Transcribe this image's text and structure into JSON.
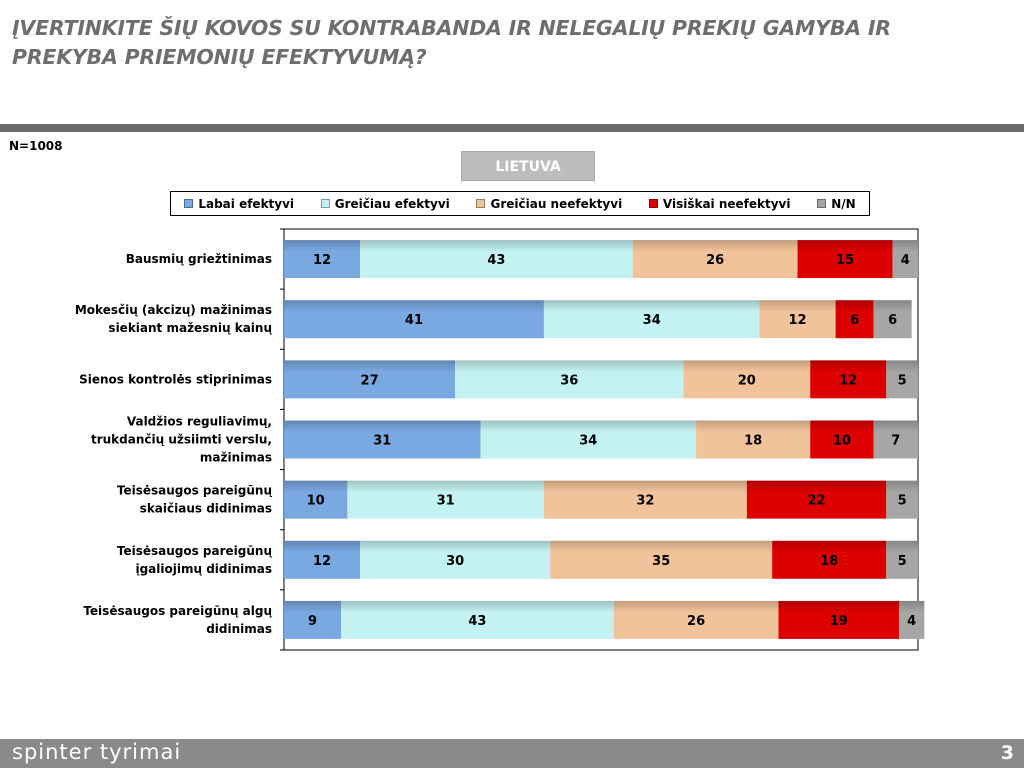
{
  "header": {
    "title": "ĮVERTINKITE ŠIŲ KOVOS SU KONTRABANDA IR NELEGALIŲ PREKIŲ GAMYBA IR PREKYBA PRIEMONIŲ EFEKTYVUMĄ?",
    "sample": "N=1008",
    "region": "LIETUVA"
  },
  "footer": {
    "brand": "spinter tyrimai",
    "page_number": "3"
  },
  "chart_data": {
    "type": "bar",
    "orientation": "horizontal",
    "stacked": true,
    "percent_scale": [
      0,
      100
    ],
    "legend_position": "top",
    "categories": [
      "Bausmių griežtinimas",
      "Mokesčių (akcizų) mažinimas siekiant mažesnių kainų",
      "Sienos kontrolės stiprinimas",
      "Valdžios reguliavimų, trukdančių užsiimti verslu, mažinimas",
      "Teisėsaugos pareigūnų skaičiaus didinimas",
      "Teisėsaugos pareigūnų įgaliojimų didinimas",
      "Teisėsaugos pareigūnų algų didinimas"
    ],
    "category_lines": [
      [
        "Bausmių griežtinimas"
      ],
      [
        "Mokesčių (akcizų) mažinimas",
        "siekiant mažesnių kainų"
      ],
      [
        "Sienos kontrolės stiprinimas"
      ],
      [
        "Valdžios reguliavimų,",
        "trukdančių užsiimti verslu,",
        "mažinimas"
      ],
      [
        "Teisėsaugos pareigūnų",
        "skaičiaus didinimas"
      ],
      [
        "Teisėsaugos pareigūnų",
        "įgaliojimų didinimas"
      ],
      [
        "Teisėsaugos pareigūnų algų",
        "didinimas"
      ]
    ],
    "series": [
      {
        "name": "Labai efektyvi",
        "color": "#7aa8e0",
        "values": [
          12,
          41,
          27,
          31,
          10,
          12,
          9
        ]
      },
      {
        "name": "Greičiau efektyvi",
        "color": "#c4f1f1",
        "values": [
          43,
          34,
          36,
          34,
          31,
          30,
          43
        ]
      },
      {
        "name": "Greičiau neefektyvi",
        "color": "#f1c39a",
        "values": [
          26,
          12,
          20,
          18,
          32,
          35,
          26
        ]
      },
      {
        "name": "Visiškai neefektyvi",
        "color": "#dd0000",
        "values": [
          15,
          6,
          12,
          10,
          22,
          18,
          19
        ]
      },
      {
        "name": "N/N",
        "color": "#a6a6a6",
        "values": [
          4,
          6,
          5,
          7,
          5,
          5,
          4
        ]
      }
    ]
  }
}
